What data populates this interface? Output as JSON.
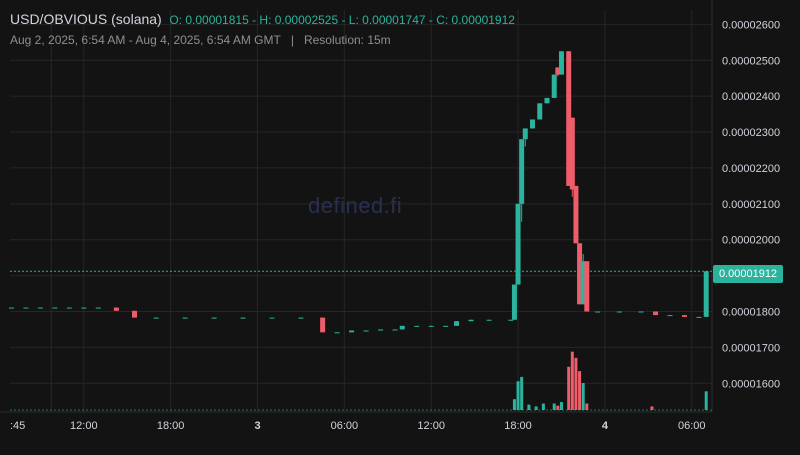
{
  "header": {
    "pair": "USD/OBVIOUS (solana)",
    "ohlc": "O: 0.00001815 - H: 0.00002525 - L: 0.00001747 - C: 0.00001912",
    "range": "Aug 2, 2025, 6:54 AM - Aug 4, 2025, 6:54 AM GMT",
    "separator": "|",
    "resolution": "Resolution: 15m"
  },
  "watermark": "defined.fi",
  "last_price_label": "0.00001912",
  "colors": {
    "up": "#2bb39d",
    "down": "#ef5c6a",
    "background": "#131313",
    "grid": "#262626"
  },
  "chart_data": {
    "type": "candlestick",
    "x_tick_labels": [
      ":45",
      "12:00",
      "18:00",
      "3",
      "06:00",
      "12:00",
      "18:00",
      "4",
      "06:00"
    ],
    "y_tick_labels": [
      "0.00001600",
      "0.00001700",
      "0.00001800",
      "0.00001900",
      "0.00002000",
      "0.00002100",
      "0.00002200",
      "0.00002300",
      "0.00002400",
      "0.00002500",
      "0.00002600"
    ],
    "ylim": [
      1.52e-05,
      2.64e-05
    ],
    "last_price": 1.912e-05,
    "grid": true,
    "x_tick_times": [
      9.75,
      12,
      18,
      24,
      30,
      36,
      42,
      48,
      54
    ],
    "xlim": [
      6.9,
      55.4
    ],
    "candles": [
      {
        "t": 7.0,
        "o": 1.811,
        "h": 1.811,
        "l": 1.811,
        "c": 1.811
      },
      {
        "t": 8.0,
        "o": 1.811,
        "h": 1.811,
        "l": 1.811,
        "c": 1.811
      },
      {
        "t": 9.0,
        "o": 1.811,
        "h": 1.811,
        "l": 1.811,
        "c": 1.811
      },
      {
        "t": 10.0,
        "o": 1.811,
        "h": 1.811,
        "l": 1.811,
        "c": 1.811
      },
      {
        "t": 11.0,
        "o": 1.811,
        "h": 1.811,
        "l": 1.811,
        "c": 1.811
      },
      {
        "t": 12.0,
        "o": 1.811,
        "h": 1.811,
        "l": 1.811,
        "c": 1.811
      },
      {
        "t": 13.0,
        "o": 1.811,
        "h": 1.811,
        "l": 1.811,
        "c": 1.811
      },
      {
        "t": 14.25,
        "o": 1.811,
        "h": 1.811,
        "l": 1.802,
        "c": 1.802
      },
      {
        "t": 15.5,
        "o": 1.802,
        "h": 1.802,
        "l": 1.783,
        "c": 1.783
      },
      {
        "t": 17.0,
        "o": 1.783,
        "h": 1.783,
        "l": 1.783,
        "c": 1.783
      },
      {
        "t": 19.0,
        "o": 1.783,
        "h": 1.783,
        "l": 1.783,
        "c": 1.783
      },
      {
        "t": 21.0,
        "o": 1.783,
        "h": 1.783,
        "l": 1.783,
        "c": 1.783
      },
      {
        "t": 23.0,
        "o": 1.783,
        "h": 1.783,
        "l": 1.783,
        "c": 1.783
      },
      {
        "t": 25.0,
        "o": 1.783,
        "h": 1.783,
        "l": 1.783,
        "c": 1.783
      },
      {
        "t": 27.0,
        "o": 1.783,
        "h": 1.783,
        "l": 1.783,
        "c": 1.783
      },
      {
        "t": 28.5,
        "o": 1.783,
        "h": 1.783,
        "l": 1.742,
        "c": 1.742
      },
      {
        "t": 29.5,
        "o": 1.742,
        "h": 1.742,
        "l": 1.742,
        "c": 1.742
      },
      {
        "t": 30.5,
        "o": 1.742,
        "h": 1.747,
        "l": 1.742,
        "c": 1.747
      },
      {
        "t": 31.5,
        "o": 1.747,
        "h": 1.747,
        "l": 1.747,
        "c": 1.747
      },
      {
        "t": 32.5,
        "o": 1.747,
        "h": 1.75,
        "l": 1.747,
        "c": 1.75
      },
      {
        "t": 33.5,
        "o": 1.75,
        "h": 1.75,
        "l": 1.75,
        "c": 1.75
      },
      {
        "t": 34.0,
        "o": 1.75,
        "h": 1.76,
        "l": 1.75,
        "c": 1.76
      },
      {
        "t": 35.0,
        "o": 1.76,
        "h": 1.76,
        "l": 1.76,
        "c": 1.76
      },
      {
        "t": 36.0,
        "o": 1.76,
        "h": 1.76,
        "l": 1.76,
        "c": 1.76
      },
      {
        "t": 37.0,
        "o": 1.76,
        "h": 1.76,
        "l": 1.76,
        "c": 1.76
      },
      {
        "t": 37.75,
        "o": 1.76,
        "h": 1.773,
        "l": 1.76,
        "c": 1.773
      },
      {
        "t": 38.75,
        "o": 1.773,
        "h": 1.777,
        "l": 1.773,
        "c": 1.777
      },
      {
        "t": 40.0,
        "o": 1.777,
        "h": 1.777,
        "l": 1.777,
        "c": 1.777
      },
      {
        "t": 41.5,
        "o": 1.777,
        "h": 1.777,
        "l": 1.777,
        "c": 1.777
      },
      {
        "t": 41.75,
        "o": 1.777,
        "h": 1.875,
        "l": 1.777,
        "c": 1.875
      },
      {
        "t": 42.0,
        "o": 1.875,
        "h": 2.1,
        "l": 1.875,
        "c": 2.1
      },
      {
        "t": 42.25,
        "o": 2.1,
        "h": 2.28,
        "l": 2.05,
        "c": 2.28
      },
      {
        "t": 42.5,
        "o": 2.28,
        "h": 2.31,
        "l": 2.26,
        "c": 2.31
      },
      {
        "t": 43.0,
        "o": 2.31,
        "h": 2.335,
        "l": 2.31,
        "c": 2.335
      },
      {
        "t": 43.5,
        "o": 2.335,
        "h": 2.38,
        "l": 2.335,
        "c": 2.38
      },
      {
        "t": 44.0,
        "o": 2.38,
        "h": 2.395,
        "l": 2.38,
        "c": 2.395
      },
      {
        "t": 44.5,
        "o": 2.395,
        "h": 2.46,
        "l": 2.395,
        "c": 2.46
      },
      {
        "t": 44.75,
        "o": 2.48,
        "h": 2.48,
        "l": 2.455,
        "c": 2.46
      },
      {
        "t": 45.0,
        "o": 2.46,
        "h": 2.525,
        "l": 2.46,
        "c": 2.525
      },
      {
        "t": 45.5,
        "o": 2.525,
        "h": 2.525,
        "l": 2.15,
        "c": 2.15
      },
      {
        "t": 45.75,
        "o": 2.34,
        "h": 2.34,
        "l": 2.12,
        "c": 2.14
      },
      {
        "t": 46.0,
        "o": 2.15,
        "h": 2.15,
        "l": 1.99,
        "c": 1.99
      },
      {
        "t": 46.25,
        "o": 1.99,
        "h": 1.99,
        "l": 1.82,
        "c": 1.82
      },
      {
        "t": 46.5,
        "o": 1.82,
        "h": 1.96,
        "l": 1.82,
        "c": 1.94
      },
      {
        "t": 46.75,
        "o": 1.94,
        "h": 1.94,
        "l": 1.8,
        "c": 1.8
      },
      {
        "t": 47.5,
        "o": 1.8,
        "h": 1.8,
        "l": 1.8,
        "c": 1.8
      },
      {
        "t": 49.0,
        "o": 1.8,
        "h": 1.8,
        "l": 1.8,
        "c": 1.8
      },
      {
        "t": 50.5,
        "o": 1.8,
        "h": 1.8,
        "l": 1.8,
        "c": 1.8
      },
      {
        "t": 51.5,
        "o": 1.8,
        "h": 1.8,
        "l": 1.79,
        "c": 1.79
      },
      {
        "t": 52.5,
        "o": 1.79,
        "h": 1.79,
        "l": 1.79,
        "c": 1.79
      },
      {
        "t": 53.5,
        "o": 1.79,
        "h": 1.79,
        "l": 1.785,
        "c": 1.785
      },
      {
        "t": 54.5,
        "o": 1.785,
        "h": 1.785,
        "l": 1.785,
        "c": 1.785
      },
      {
        "t": 55.0,
        "o": 1.785,
        "h": 1.912,
        "l": 1.785,
        "c": 1.912
      }
    ],
    "volume_scale": "relative",
    "volumes": [
      {
        "t": 41.75,
        "v": 0.3,
        "dir": "up"
      },
      {
        "t": 42.0,
        "v": 0.8,
        "dir": "up"
      },
      {
        "t": 42.25,
        "v": 0.92,
        "dir": "up"
      },
      {
        "t": 42.75,
        "v": 0.15,
        "dir": "up"
      },
      {
        "t": 43.25,
        "v": 0.1,
        "dir": "up"
      },
      {
        "t": 43.75,
        "v": 0.18,
        "dir": "up"
      },
      {
        "t": 44.5,
        "v": 0.18,
        "dir": "up"
      },
      {
        "t": 44.75,
        "v": 0.12,
        "dir": "down"
      },
      {
        "t": 45.0,
        "v": 0.22,
        "dir": "up"
      },
      {
        "t": 45.5,
        "v": 1.2,
        "dir": "down"
      },
      {
        "t": 45.75,
        "v": 1.62,
        "dir": "down"
      },
      {
        "t": 46.0,
        "v": 1.45,
        "dir": "down"
      },
      {
        "t": 46.25,
        "v": 1.08,
        "dir": "down"
      },
      {
        "t": 46.5,
        "v": 0.75,
        "dir": "up"
      },
      {
        "t": 46.75,
        "v": 0.18,
        "dir": "down"
      },
      {
        "t": 51.25,
        "v": 0.1,
        "dir": "down"
      },
      {
        "t": 55.0,
        "v": 0.52,
        "dir": "up"
      }
    ]
  }
}
